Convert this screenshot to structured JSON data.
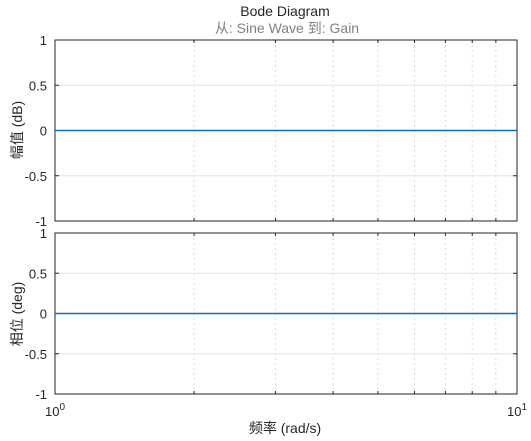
{
  "chart_data": {
    "type": "line",
    "title": "Bode Diagram",
    "subtitle": "从: Sine Wave  到: Gain",
    "xlabel": "频率  (rad/s)",
    "x_scale": "log",
    "xlim": [
      1,
      10
    ],
    "x_tick_labels": [
      {
        "base": "10",
        "exp": "0"
      },
      {
        "base": "10",
        "exp": "1"
      }
    ],
    "grid": true,
    "series_color": "#0072bd",
    "subplots": [
      {
        "name": "magnitude",
        "ylabel": "幅值 (dB)",
        "ylim": [
          -1,
          1
        ],
        "yticks": [
          1,
          0.5,
          0,
          -0.5,
          -1
        ],
        "ytick_labels": [
          "1",
          "0.5",
          "0",
          "-0.5",
          "-1"
        ],
        "x": [
          1,
          10
        ],
        "y": [
          0,
          0
        ]
      },
      {
        "name": "phase",
        "ylabel": "相位 (deg)",
        "ylim": [
          -1,
          1
        ],
        "yticks": [
          1,
          0.5,
          0,
          -0.5,
          -1
        ],
        "ytick_labels": [
          "1",
          "0.5",
          "0",
          "-0.5",
          "-1"
        ],
        "x": [
          1,
          10
        ],
        "y": [
          0,
          0
        ]
      }
    ]
  }
}
